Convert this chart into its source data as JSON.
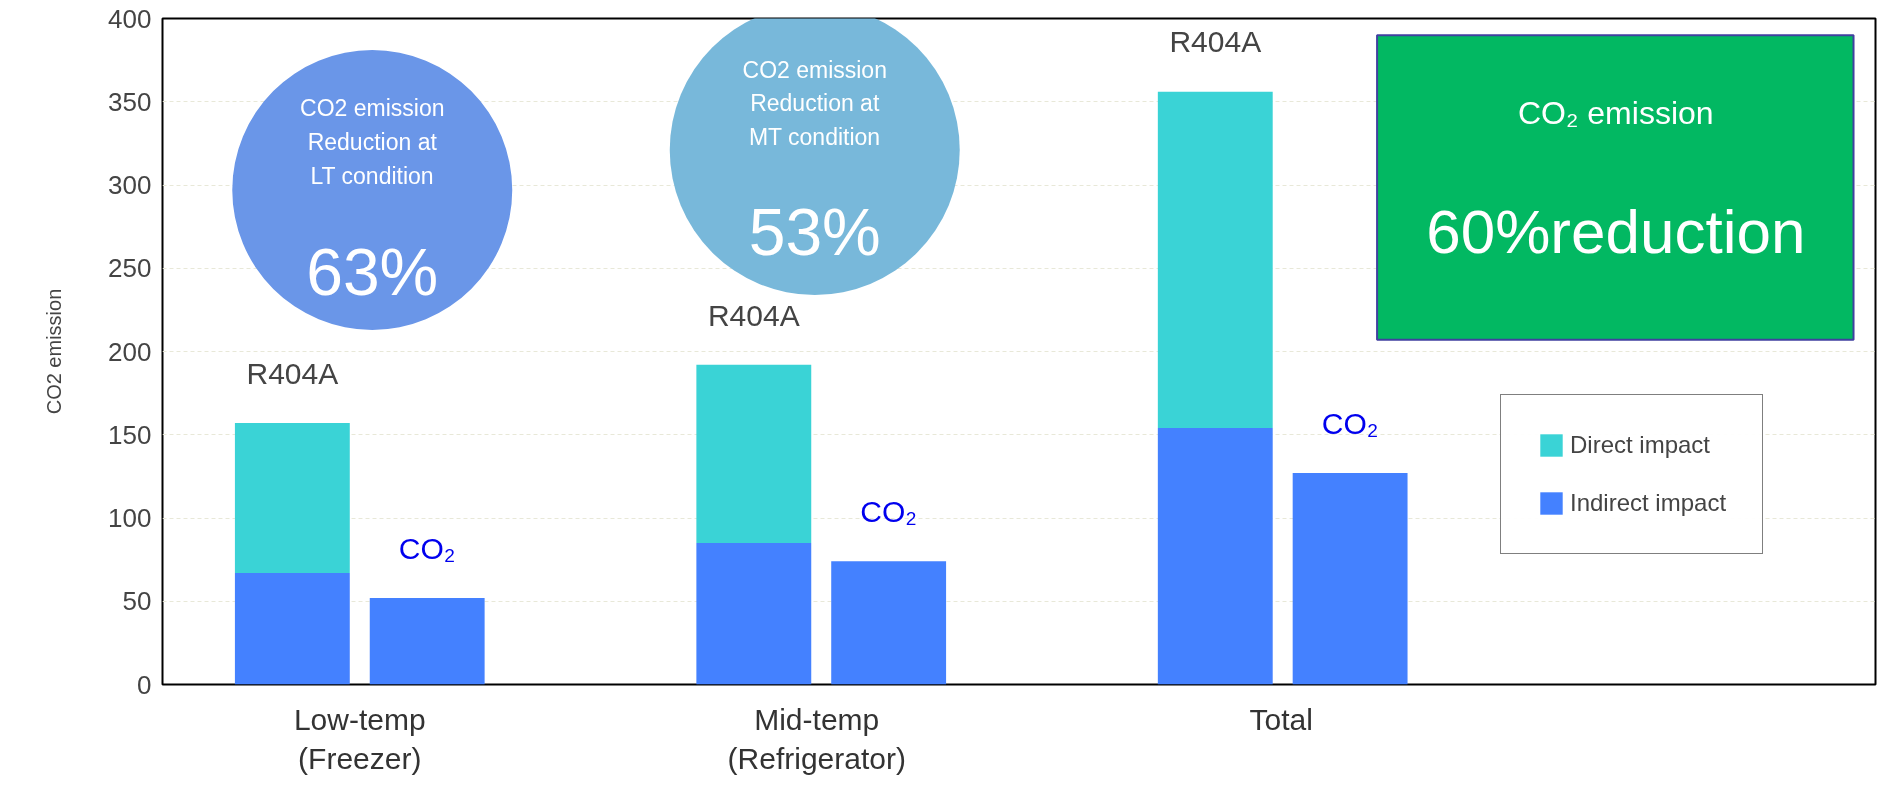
{
  "chart_data": {
    "type": "bar",
    "stacked": true,
    "ylabel": "CO2 emission",
    "categories": [
      null,
      null,
      null,
      null,
      null,
      null
    ],
    "ylim": [
      0,
      400
    ],
    "yticks": [
      0,
      50,
      100,
      150,
      200,
      250,
      300,
      350,
      400
    ],
    "series": [
      {
        "name": "Indirect impact",
        "color": "#4481ff",
        "values": [
          67,
          52,
          85,
          74,
          154,
          127
        ]
      },
      {
        "name": "Direct impact",
        "color": "#3ad3d6",
        "values": [
          90,
          0,
          107,
          0,
          202,
          0
        ]
      }
    ],
    "annotations": [
      {
        "text": "R404A",
        "y": 157
      },
      {
        "text": "CO₂",
        "y": 52
      },
      {
        "text": "R404A",
        "y": 192
      },
      {
        "text": "CO₂",
        "y": 74
      },
      {
        "text": "R404A",
        "y": 356
      },
      {
        "text": "CO₂",
        "y": 127
      },
      "CO2 emission\nReduction at\nLT condition",
      "63%",
      "CO2 emission\nReduction at\nMT condition",
      "53%",
      "CO₂ emission",
      "60%reduction",
      "Low-temp\n(Freezer)",
      "Mid-temp\n(Refrigerator)",
      "Total"
    ],
    "grid": "y",
    "legend": "right"
  }
}
